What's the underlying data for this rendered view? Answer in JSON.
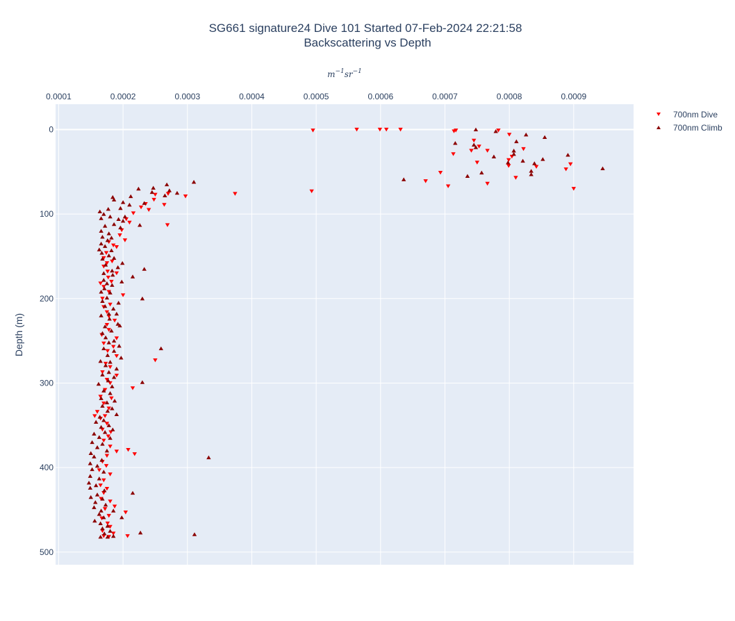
{
  "chart_data": {
    "type": "scatter",
    "title": "SG661 signature24 Dive 101 Started 07-Feb-2024 22:21:58",
    "subtitle": "Backscattering vs Depth",
    "xlabel": "m^-1 sr^-1",
    "xlabel_base1": "m",
    "xlabel_exp1": "−1",
    "xlabel_base2": "sr",
    "xlabel_exp2": "−1",
    "ylabel": "Depth (m)",
    "x_axis_position": "top",
    "y_reversed": true,
    "xlim": [
      9.52e-05,
      0.000993
    ],
    "ylim": [
      515,
      -30
    ],
    "x_ticks": [
      "0.0001",
      "0.0002",
      "0.0003",
      "0.0004",
      "0.0005",
      "0.0006",
      "0.0007",
      "0.0008",
      "0.0009"
    ],
    "x_tick_values": [
      0.0001,
      0.0002,
      0.0003,
      0.0004,
      0.0005,
      0.0006,
      0.0007,
      0.0008,
      0.0009
    ],
    "y_ticks": [
      "0",
      "100",
      "200",
      "300",
      "400",
      "500"
    ],
    "y_tick_values": [
      0,
      100,
      200,
      300,
      400,
      500
    ],
    "grid": true,
    "legend_position": "top-right",
    "colors": {
      "plot_bg": "#e5ecf6",
      "grid": "#ffffff",
      "dive": "#ff0000",
      "climb": "#8b0000"
    },
    "series": [
      {
        "name": "700nm Dive",
        "marker": "triangle-down",
        "color": "#ff0000",
        "points": [
          [
            0.000495,
            1
          ],
          [
            0.000563,
            0
          ],
          [
            0.000599,
            0
          ],
          [
            0.000609,
            0
          ],
          [
            0.000631,
            0
          ],
          [
            0.000714,
            2
          ],
          [
            0.000717,
            1
          ],
          [
            0.000783,
            1
          ],
          [
            0.0008,
            6
          ],
          [
            0.000753,
            20
          ],
          [
            0.000745,
            13
          ],
          [
            0.000713,
            29
          ],
          [
            0.000741,
            25
          ],
          [
            0.000766,
            25
          ],
          [
            0.000822,
            23
          ],
          [
            0.000804,
            32
          ],
          [
            0.000799,
            36
          ],
          [
            0.00075,
            39
          ],
          [
            0.000799,
            43
          ],
          [
            0.000842,
            44
          ],
          [
            0.000888,
            47
          ],
          [
            0.000895,
            41
          ],
          [
            0.000693,
            51
          ],
          [
            0.00081,
            57
          ],
          [
            0.00067,
            61
          ],
          [
            0.000705,
            67
          ],
          [
            0.000766,
            64
          ],
          [
            0.0009,
            70
          ],
          [
            0.000493,
            73
          ],
          [
            0.000374,
            76
          ],
          [
            0.000297,
            79
          ],
          [
            0.00027,
            76
          ],
          [
            0.00025,
            77
          ],
          [
            0.000248,
            83
          ],
          [
            0.000264,
            89
          ],
          [
            0.000235,
            88
          ],
          [
            0.000228,
            92
          ],
          [
            0.00024,
            95
          ],
          [
            0.000216,
            99
          ],
          [
            0.000205,
            106
          ],
          [
            0.00021,
            110
          ],
          [
            0.000269,
            113
          ],
          [
            0.000198,
            119
          ],
          [
            0.000195,
            125
          ],
          [
            0.000203,
            131
          ],
          [
            0.000178,
            133
          ],
          [
            0.000185,
            137
          ],
          [
            0.00019,
            139
          ],
          [
            0.000174,
            146
          ],
          [
            0.00017,
            152
          ],
          [
            0.000183,
            156
          ],
          [
            0.000175,
            158
          ],
          [
            0.00017,
            162
          ],
          [
            0.000176,
            168
          ],
          [
            0.00019,
            170
          ],
          [
            0.000177,
            175
          ],
          [
            0.000182,
            180
          ],
          [
            0.000165,
            182
          ],
          [
            0.00017,
            186
          ],
          [
            0.000178,
            192
          ],
          [
            0.0002,
            196
          ],
          [
            0.000168,
            200
          ],
          [
            0.00018,
            207
          ],
          [
            0.00017,
            210
          ],
          [
            0.000175,
            216
          ],
          [
            0.000178,
            221
          ],
          [
            0.000187,
            226
          ],
          [
            0.000175,
            231
          ],
          [
            0.000178,
            237
          ],
          [
            0.000167,
            243
          ],
          [
            0.00019,
            247
          ],
          [
            0.00017,
            253
          ],
          [
            0.000185,
            257
          ],
          [
            0.000176,
            262
          ],
          [
            0.00019,
            268
          ],
          [
            0.00025,
            273
          ],
          [
            0.000173,
            277
          ],
          [
            0.00018,
            281
          ],
          [
            0.000168,
            287
          ],
          [
            0.00019,
            291
          ],
          [
            0.000175,
            296
          ],
          [
            0.00018,
            300
          ],
          [
            0.000215,
            306
          ],
          [
            0.000172,
            308
          ],
          [
            0.000165,
            316
          ],
          [
            0.000182,
            318
          ],
          [
            0.00017,
            324
          ],
          [
            0.000178,
            330
          ],
          [
            0.00016,
            334
          ],
          [
            0.000172,
            339
          ],
          [
            0.000156,
            339
          ],
          [
            0.000165,
            342
          ],
          [
            0.000175,
            348
          ],
          [
            0.000168,
            355
          ],
          [
            0.000181,
            358
          ],
          [
            0.000177,
            363
          ],
          [
            0.00017,
            368
          ],
          [
            0.00018,
            375
          ],
          [
            0.00019,
            381
          ],
          [
            0.000208,
            379
          ],
          [
            0.000218,
            384
          ],
          [
            0.000175,
            386
          ],
          [
            0.000168,
            393
          ],
          [
            0.000174,
            398
          ],
          [
            0.000163,
            403
          ],
          [
            0.00018,
            408
          ],
          [
            0.00017,
            415
          ],
          [
            0.000165,
            421
          ],
          [
            0.000175,
            425
          ],
          [
            0.00017,
            430
          ],
          [
            0.000166,
            437
          ],
          [
            0.00018,
            440
          ],
          [
            0.000187,
            446
          ],
          [
            0.000172,
            449
          ],
          [
            0.000204,
            453
          ],
          [
            0.000178,
            457
          ],
          [
            0.000167,
            460
          ],
          [
            0.000176,
            466
          ],
          [
            0.00018,
            470
          ],
          [
            0.000168,
            475
          ],
          [
            0.000185,
            478
          ],
          [
            0.000207,
            481
          ],
          [
            0.00017,
            481
          ],
          [
            0.000178,
            482
          ]
        ]
      },
      {
        "name": "700nm Climb",
        "marker": "triangle-up",
        "color": "#8b0000",
        "points": [
          [
            0.000748,
            0
          ],
          [
            0.000779,
            2
          ],
          [
            0.000826,
            6
          ],
          [
            0.000855,
            9
          ],
          [
            0.000811,
            14
          ],
          [
            0.000716,
            16
          ],
          [
            0.000745,
            18
          ],
          [
            0.000748,
            21
          ],
          [
            0.000807,
            25
          ],
          [
            0.000807,
            29
          ],
          [
            0.000776,
            32
          ],
          [
            0.000891,
            30
          ],
          [
            0.000852,
            35
          ],
          [
            0.000821,
            37
          ],
          [
            0.000798,
            39
          ],
          [
            0.000839,
            40
          ],
          [
            0.000945,
            46
          ],
          [
            0.000834,
            49
          ],
          [
            0.000757,
            51
          ],
          [
            0.000735,
            55
          ],
          [
            0.000834,
            53
          ],
          [
            0.000636,
            59
          ],
          [
            0.00031,
            62
          ],
          [
            0.000224,
            70
          ],
          [
            0.000268,
            65
          ],
          [
            0.000247,
            69
          ],
          [
            0.000272,
            72
          ],
          [
            0.000245,
            74
          ],
          [
            0.000284,
            75
          ],
          [
            0.000265,
            78
          ],
          [
            0.000212,
            79
          ],
          [
            0.000184,
            80
          ],
          [
            0.0002,
            86
          ],
          [
            0.000186,
            83
          ],
          [
            0.00021,
            89
          ],
          [
            0.000233,
            87
          ],
          [
            0.000177,
            94
          ],
          [
            0.000196,
            93
          ],
          [
            0.000164,
            97
          ],
          [
            0.00017,
            100
          ],
          [
            0.00018,
            103
          ],
          [
            0.000166,
            105
          ],
          [
            0.000203,
            103
          ],
          [
            0.000193,
            106
          ],
          [
            0.0002,
            108
          ],
          [
            0.000186,
            112
          ],
          [
            0.000172,
            114
          ],
          [
            0.000226,
            113
          ],
          [
            0.000196,
            116
          ],
          [
            0.000166,
            120
          ],
          [
            0.000178,
            123
          ],
          [
            0.000168,
            127
          ],
          [
            0.000182,
            128
          ],
          [
            0.000176,
            131
          ],
          [
            0.000166,
            135
          ],
          [
            0.000172,
            138
          ],
          [
            0.000163,
            142
          ],
          [
            0.000182,
            143
          ],
          [
            0.000167,
            146
          ],
          [
            0.000178,
            149
          ],
          [
            0.000168,
            153
          ],
          [
            0.000186,
            152
          ],
          [
            0.000199,
            158
          ],
          [
            0.000173,
            160
          ],
          [
            0.000192,
            163
          ],
          [
            0.000233,
            165
          ],
          [
            0.000183,
            167
          ],
          [
            0.00017,
            170
          ],
          [
            0.000184,
            172
          ],
          [
            0.000215,
            174
          ],
          [
            0.00017,
            178
          ],
          [
            0.000175,
            182
          ],
          [
            0.000198,
            180
          ],
          [
            0.000183,
            184
          ],
          [
            0.000171,
            188
          ],
          [
            0.000166,
            192
          ],
          [
            0.00018,
            193
          ],
          [
            0.000175,
            199
          ],
          [
            0.00023,
            200
          ],
          [
            0.000168,
            203
          ],
          [
            0.000193,
            205
          ],
          [
            0.000172,
            209
          ],
          [
            0.000185,
            212
          ],
          [
            0.000178,
            218
          ],
          [
            0.000166,
            220
          ],
          [
            0.00019,
            218
          ],
          [
            0.000179,
            224
          ],
          [
            0.000192,
            230
          ],
          [
            0.000172,
            233
          ],
          [
            0.000195,
            232
          ],
          [
            0.000182,
            238
          ],
          [
            0.000168,
            241
          ],
          [
            0.000173,
            246
          ],
          [
            0.000186,
            250
          ],
          [
            0.000178,
            252
          ],
          [
            0.000194,
            256
          ],
          [
            0.00017,
            259
          ],
          [
            0.000259,
            259
          ],
          [
            0.000186,
            262
          ],
          [
            0.000176,
            267
          ],
          [
            0.000197,
            270
          ],
          [
            0.000165,
            274
          ],
          [
            0.00018,
            275
          ],
          [
            0.000173,
            279
          ],
          [
            0.00019,
            283
          ],
          [
            0.000178,
            287
          ],
          [
            0.000168,
            290
          ],
          [
            0.000186,
            293
          ],
          [
            0.000177,
            297
          ],
          [
            0.00023,
            299
          ],
          [
            0.000162,
            301
          ],
          [
            0.000183,
            304
          ],
          [
            0.00017,
            309
          ],
          [
            0.00018,
            312
          ],
          [
            0.000166,
            318
          ],
          [
            0.000187,
            321
          ],
          [
            0.000175,
            323
          ],
          [
            0.000168,
            327
          ],
          [
            0.000183,
            330
          ],
          [
            0.000176,
            333
          ],
          [
            0.00019,
            337
          ],
          [
            0.000164,
            340
          ],
          [
            0.00017,
            344
          ],
          [
            0.000158,
            346
          ],
          [
            0.000178,
            350
          ],
          [
            0.000166,
            352
          ],
          [
            0.000184,
            355
          ],
          [
            0.000172,
            358
          ],
          [
            0.000155,
            360
          ],
          [
            0.000163,
            364
          ],
          [
            0.00018,
            365
          ],
          [
            0.000152,
            370
          ],
          [
            0.000168,
            372
          ],
          [
            0.00016,
            376
          ],
          [
            0.000175,
            380
          ],
          [
            0.00015,
            383
          ],
          [
            0.000155,
            387
          ],
          [
            0.000333,
            388
          ],
          [
            0.000167,
            391
          ],
          [
            0.000149,
            395
          ],
          [
            0.00016,
            398
          ],
          [
            0.000152,
            402
          ],
          [
            0.00017,
            405
          ],
          [
            0.000149,
            410
          ],
          [
            0.000163,
            413
          ],
          [
            0.000147,
            418
          ],
          [
            0.000158,
            421
          ],
          [
            0.000149,
            424
          ],
          [
            0.000171,
            427
          ],
          [
            0.000215,
            430
          ],
          [
            0.00016,
            432
          ],
          [
            0.00015,
            435
          ],
          [
            0.000168,
            437
          ],
          [
            0.000157,
            441
          ],
          [
            0.000173,
            444
          ],
          [
            0.000155,
            447
          ],
          [
            0.000166,
            451
          ],
          [
            0.000185,
            451
          ],
          [
            0.000163,
            455
          ],
          [
            0.00017,
            459
          ],
          [
            0.000198,
            459
          ],
          [
            0.000156,
            463
          ],
          [
            0.000165,
            466
          ],
          [
            0.000176,
            469
          ],
          [
            0.000168,
            472
          ],
          [
            0.00018,
            475
          ],
          [
            0.000171,
            478
          ],
          [
            0.000227,
            477
          ],
          [
            0.000311,
            479
          ],
          [
            0.000185,
            481
          ],
          [
            0.000176,
            482
          ],
          [
            0.000165,
            482
          ]
        ]
      }
    ]
  }
}
